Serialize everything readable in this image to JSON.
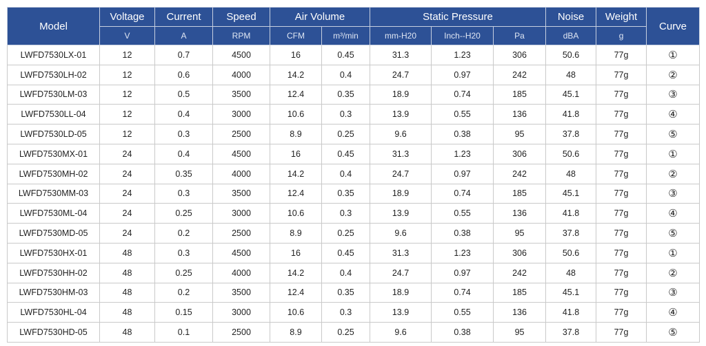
{
  "headers": {
    "model": "Model",
    "voltage": "Voltage",
    "current": "Current",
    "speed": "Speed",
    "air_volume": "Air Volume",
    "static_pressure": "Static Pressure",
    "noise": "Noise",
    "weight": "Weight",
    "curve": "Curve"
  },
  "units": {
    "voltage": "V",
    "current": "A",
    "speed": "RPM",
    "cfm": "CFM",
    "m3min": "m³/min",
    "mmh2o": "mm-H20",
    "inchh2o": "Inch--H20",
    "pa": "Pa",
    "noise": "dBA",
    "weight": "g"
  },
  "rows": [
    [
      "LWFD7530LX-01",
      "12",
      "0.7",
      "4500",
      "16",
      "0.45",
      "31.3",
      "1.23",
      "306",
      "50.6",
      "77g",
      "①"
    ],
    [
      "LWFD7530LH-02",
      "12",
      "0.6",
      "4000",
      "14.2",
      "0.4",
      "24.7",
      "0.97",
      "242",
      "48",
      "77g",
      "②"
    ],
    [
      "LWFD7530LM-03",
      "12",
      "0.5",
      "3500",
      "12.4",
      "0.35",
      "18.9",
      "0.74",
      "185",
      "45.1",
      "77g",
      "③"
    ],
    [
      "LWFD7530LL-04",
      "12",
      "0.4",
      "3000",
      "10.6",
      "0.3",
      "13.9",
      "0.55",
      "136",
      "41.8",
      "77g",
      "④"
    ],
    [
      "LWFD7530LD-05",
      "12",
      "0.3",
      "2500",
      "8.9",
      "0.25",
      "9.6",
      "0.38",
      "95",
      "37.8",
      "77g",
      "⑤"
    ],
    [
      "LWFD7530MX-01",
      "24",
      "0.4",
      "4500",
      "16",
      "0.45",
      "31.3",
      "1.23",
      "306",
      "50.6",
      "77g",
      "①"
    ],
    [
      "LWFD7530MH-02",
      "24",
      "0.35",
      "4000",
      "14.2",
      "0.4",
      "24.7",
      "0.97",
      "242",
      "48",
      "77g",
      "②"
    ],
    [
      "LWFD7530MM-03",
      "24",
      "0.3",
      "3500",
      "12.4",
      "0.35",
      "18.9",
      "0.74",
      "185",
      "45.1",
      "77g",
      "③"
    ],
    [
      "LWFD7530ML-04",
      "24",
      "0.25",
      "3000",
      "10.6",
      "0.3",
      "13.9",
      "0.55",
      "136",
      "41.8",
      "77g",
      "④"
    ],
    [
      "LWFD7530MD-05",
      "24",
      "0.2",
      "2500",
      "8.9",
      "0.25",
      "9.6",
      "0.38",
      "95",
      "37.8",
      "77g",
      "⑤"
    ],
    [
      "LWFD7530HX-01",
      "48",
      "0.3",
      "4500",
      "16",
      "0.45",
      "31.3",
      "1.23",
      "306",
      "50.6",
      "77g",
      "①"
    ],
    [
      "LWFD7530HH-02",
      "48",
      "0.25",
      "4000",
      "14.2",
      "0.4",
      "24.7",
      "0.97",
      "242",
      "48",
      "77g",
      "②"
    ],
    [
      "LWFD7530HM-03",
      "48",
      "0.2",
      "3500",
      "12.4",
      "0.35",
      "18.9",
      "0.74",
      "185",
      "45.1",
      "77g",
      "③"
    ],
    [
      "LWFD7530HL-04",
      "48",
      "0.15",
      "3000",
      "10.6",
      "0.3",
      "13.9",
      "0.55",
      "136",
      "41.8",
      "77g",
      "④"
    ],
    [
      "LWFD7530HD-05",
      "48",
      "0.1",
      "2500",
      "8.9",
      "0.25",
      "9.6",
      "0.38",
      "95",
      "37.8",
      "77g",
      "⑤"
    ]
  ]
}
